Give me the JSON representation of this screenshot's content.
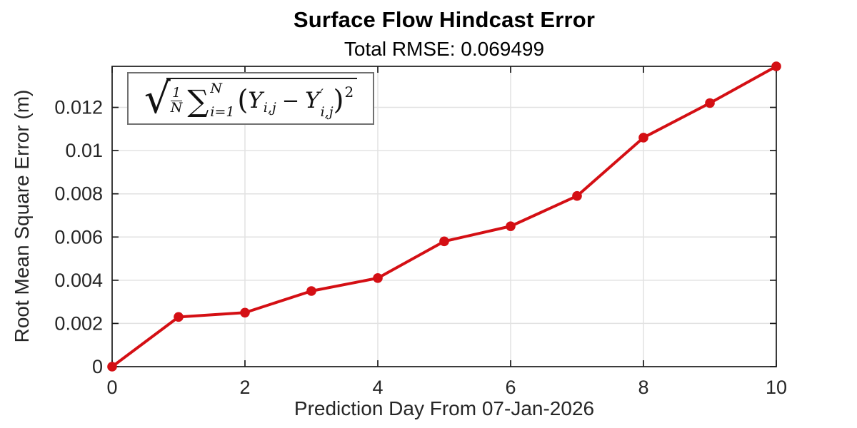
{
  "title": "Surface Flow Hindcast Error",
  "subtitle": "Total RMSE: 0.069499",
  "formula": {
    "radical": "√",
    "frac_num": "1",
    "frac_den": "N",
    "sum_symbol": "∑",
    "sum_upper": "N",
    "sum_lower": "i=1",
    "open_paren": "(",
    "var_y1": "Y",
    "sub1": "i,j",
    "minus": "−",
    "var_y2": "Y",
    "prime": "′",
    "sub2": "i,j",
    "close_paren": ")",
    "exponent": "2"
  },
  "chart_data": {
    "type": "line",
    "title": "Surface Flow Hindcast Error",
    "subtitle": "Total RMSE: 0.069499",
    "xlabel": "Prediction Day From 07-Jan-2026",
    "ylabel": "Root Mean Square Error (m)",
    "series": [
      {
        "name": "RMSE",
        "x": [
          0,
          1,
          2,
          3,
          4,
          5,
          6,
          7,
          8,
          9,
          10
        ],
        "values": [
          0,
          0.0023,
          0.0025,
          0.0035,
          0.0041,
          0.0058,
          0.0065,
          0.0079,
          0.0106,
          0.0122,
          0.0139
        ]
      }
    ],
    "xlim": [
      0,
      10
    ],
    "ylim": [
      0,
      0.0139
    ],
    "x_ticks": [
      0,
      2,
      4,
      6,
      8,
      10
    ],
    "x_tick_labels": [
      "0",
      "2",
      "4",
      "6",
      "8",
      "10"
    ],
    "y_ticks": [
      0,
      0.002,
      0.004,
      0.006,
      0.008,
      0.01,
      0.012
    ],
    "y_tick_labels": [
      "0",
      "0.002",
      "0.004",
      "0.006",
      "0.008",
      "0.01",
      "0.012"
    ],
    "grid": true,
    "box": true,
    "legend_position": "none",
    "annotation": "sqrt((1/N) * sum_{i=1}^{N} (Y_ij − Y'_ij)^2)",
    "colors": {
      "line": "#d40f14",
      "marker": "#d40f14",
      "grid": "#e2e2e2",
      "axis": "#1a1a1a",
      "tick_text": "#262626"
    }
  }
}
